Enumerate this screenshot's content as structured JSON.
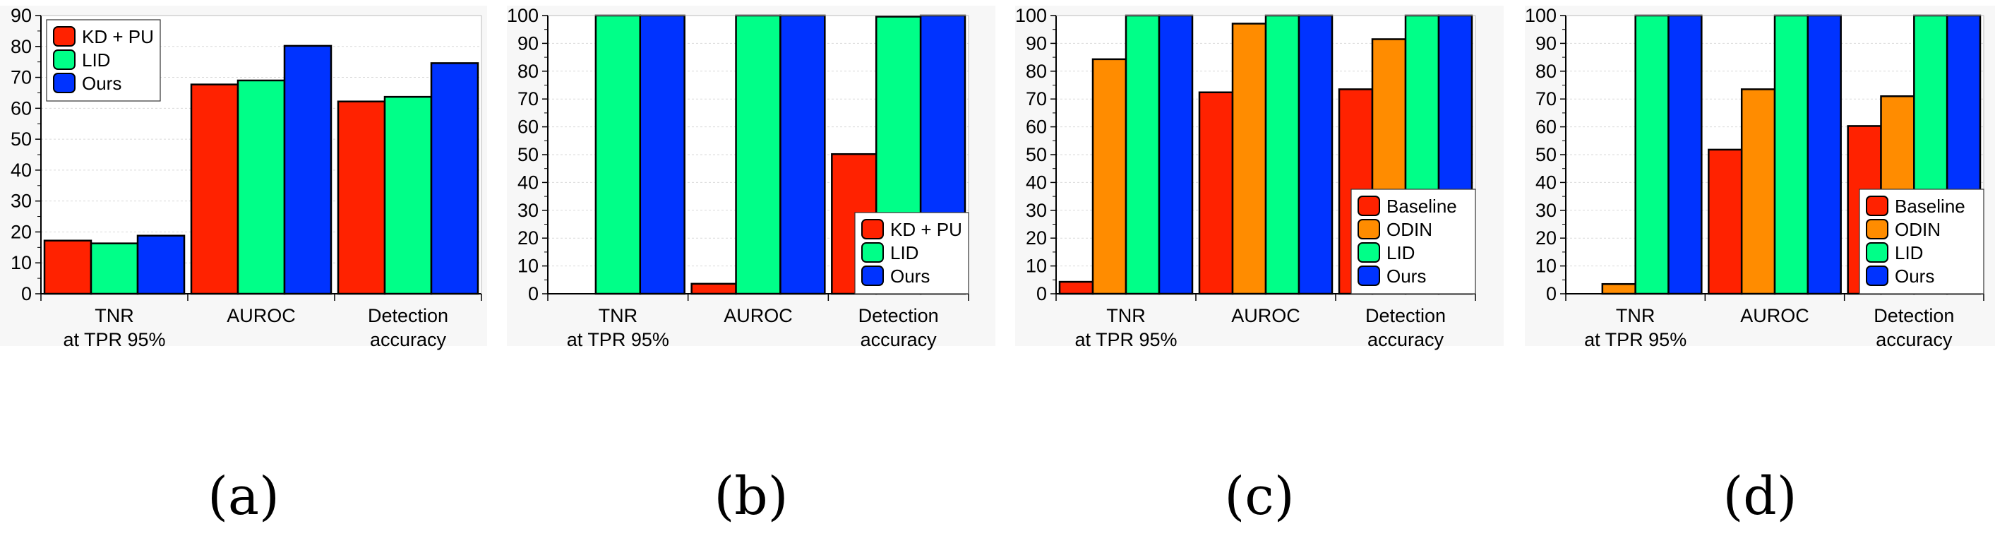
{
  "chart_data": [
    {
      "panel": "(a)",
      "type": "bar",
      "categories": [
        [
          "TNR",
          "at TPR 95%"
        ],
        [
          "AUROC"
        ],
        [
          "Detection",
          "accuracy"
        ]
      ],
      "series": [
        {
          "name": "KD + PU",
          "color": "#ff2200",
          "values": [
            17.2,
            67.7,
            62.2
          ]
        },
        {
          "name": "LID",
          "color": "#00ff88",
          "values": [
            16.3,
            69.0,
            63.7
          ]
        },
        {
          "name": "Ours",
          "color": "#0033ff",
          "values": [
            18.8,
            80.2,
            74.6
          ]
        }
      ],
      "ylim": [
        0,
        90
      ],
      "yticks": [
        0,
        10,
        20,
        30,
        40,
        50,
        60,
        70,
        80,
        90
      ],
      "legend_position": "top-left",
      "grid": true
    },
    {
      "panel": "(b)",
      "type": "bar",
      "categories": [
        [
          "TNR",
          "at TPR 95%"
        ],
        [
          "AUROC"
        ],
        [
          "Detection",
          "accuracy"
        ]
      ],
      "series": [
        {
          "name": "KD + PU",
          "color": "#ff2200",
          "values": [
            0.0,
            3.6,
            50.2
          ]
        },
        {
          "name": "LID",
          "color": "#00ff88",
          "values": [
            100,
            100,
            99.6
          ]
        },
        {
          "name": "Ours",
          "color": "#0033ff",
          "values": [
            100,
            100,
            100
          ]
        }
      ],
      "ylim": [
        0,
        100
      ],
      "yticks": [
        0,
        10,
        20,
        30,
        40,
        50,
        60,
        70,
        80,
        90,
        100
      ],
      "legend_position": "bottom-right",
      "grid": true
    },
    {
      "panel": "(c)",
      "type": "bar",
      "categories": [
        [
          "TNR",
          "at TPR 95%"
        ],
        [
          "AUROC"
        ],
        [
          "Detection",
          "accuracy"
        ]
      ],
      "series": [
        {
          "name": "Baseline",
          "color": "#ff2200",
          "values": [
            4.3,
            72.4,
            73.5
          ]
        },
        {
          "name": "ODIN",
          "color": "#ff8c00",
          "values": [
            84.3,
            97.1,
            91.5
          ]
        },
        {
          "name": "LID",
          "color": "#00ff88",
          "values": [
            100,
            100,
            100
          ]
        },
        {
          "name": "Ours",
          "color": "#0033ff",
          "values": [
            100,
            100,
            100
          ]
        }
      ],
      "ylim": [
        0,
        100
      ],
      "yticks": [
        0,
        10,
        20,
        30,
        40,
        50,
        60,
        70,
        80,
        90,
        100
      ],
      "legend_position": "bottom-right",
      "grid": true
    },
    {
      "panel": "(d)",
      "type": "bar",
      "categories": [
        [
          "TNR",
          "at TPR 95%"
        ],
        [
          "AUROC"
        ],
        [
          "Detection",
          "accuracy"
        ]
      ],
      "series": [
        {
          "name": "Baseline",
          "color": "#ff2200",
          "values": [
            0.0,
            51.8,
            60.3
          ]
        },
        {
          "name": "ODIN",
          "color": "#ff8c00",
          "values": [
            3.5,
            73.5,
            71.0
          ]
        },
        {
          "name": "LID",
          "color": "#00ff88",
          "values": [
            100,
            100,
            100
          ]
        },
        {
          "name": "Ours",
          "color": "#0033ff",
          "values": [
            100,
            100,
            100
          ]
        }
      ],
      "ylim": [
        0,
        100
      ],
      "yticks": [
        0,
        10,
        20,
        30,
        40,
        50,
        60,
        70,
        80,
        90,
        100
      ],
      "legend_position": "bottom-right",
      "grid": true
    }
  ]
}
